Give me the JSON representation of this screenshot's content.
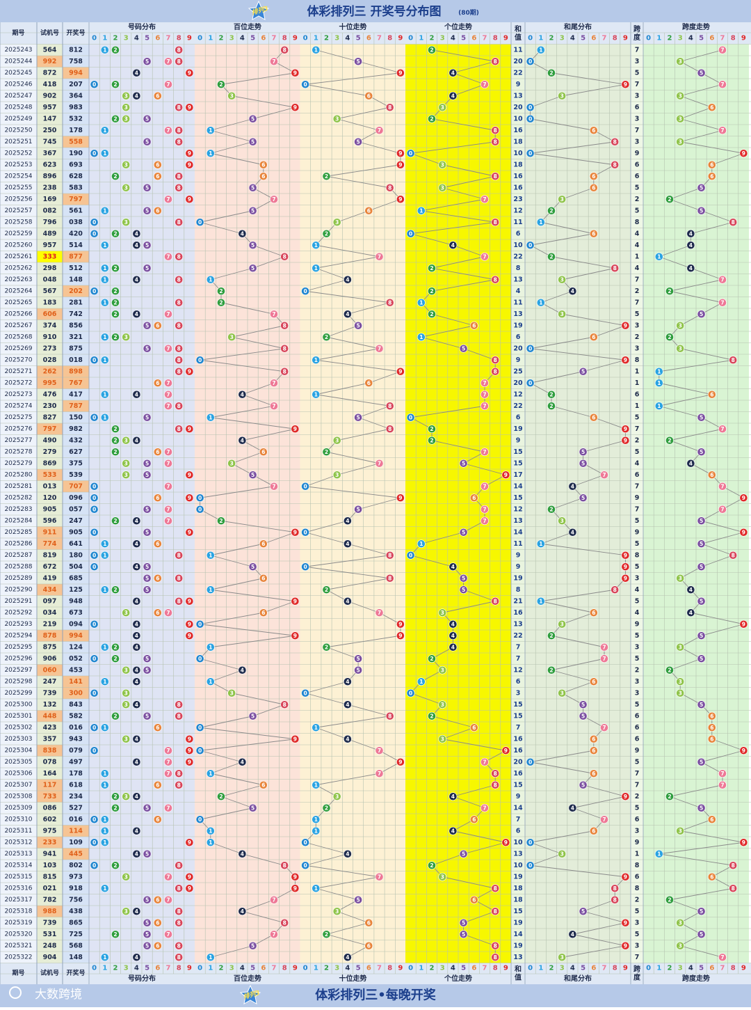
{
  "header": {
    "logo": "排列3",
    "title": "体彩排列三 开奖号分布图",
    "subtitle": "(80期)"
  },
  "columns": {
    "issue": "期号",
    "trial": "试机号",
    "draw": "开奖号",
    "distribution": "号码分布",
    "hundreds": "百位走势",
    "tens": "十位走势",
    "units": "个位走势",
    "sum": "和值",
    "sum_tail": "和尾分布",
    "span": "跨度",
    "span_trend": "跨度走势",
    "digits": [
      0,
      1,
      2,
      3,
      4,
      5,
      6,
      7,
      8,
      9
    ],
    "digit_colors": [
      "#1f86d0",
      "#2aa3e2",
      "#2f9e3e",
      "#8fc44a",
      "#1e2b4c",
      "#7a4ea0",
      "#e8843a",
      "#ee7896",
      "#d8455a",
      "#e02828"
    ]
  },
  "rows": [
    {
      "issue": "2025243",
      "trial": "564",
      "draw": "812",
      "sum": 11,
      "span": 7
    },
    {
      "issue": "2025244",
      "trial": "992",
      "draw": "758",
      "sum": 20,
      "span": 3
    },
    {
      "issue": "2025245",
      "trial": "872",
      "draw": "994",
      "sum": 22,
      "span": 5
    },
    {
      "issue": "2025246",
      "trial": "418",
      "draw": "207",
      "sum": 9,
      "span": 7
    },
    {
      "issue": "2025247",
      "trial": "902",
      "draw": "364",
      "sum": 13,
      "span": 3
    },
    {
      "issue": "2025248",
      "trial": "957",
      "draw": "983",
      "sum": 20,
      "span": 6
    },
    {
      "issue": "2025249",
      "trial": "147",
      "draw": "532",
      "sum": 10,
      "span": 3
    },
    {
      "issue": "2025250",
      "trial": "250",
      "draw": "178",
      "sum": 16,
      "span": 7
    },
    {
      "issue": "2025251",
      "trial": "745",
      "draw": "558",
      "sum": 18,
      "span": 3
    },
    {
      "issue": "2025252",
      "trial": "367",
      "draw": "190",
      "sum": 10,
      "span": 9
    },
    {
      "issue": "2025253",
      "trial": "623",
      "draw": "693",
      "sum": 18,
      "span": 6
    },
    {
      "issue": "2025254",
      "trial": "896",
      "draw": "628",
      "sum": 16,
      "span": 6
    },
    {
      "issue": "2025255",
      "trial": "238",
      "draw": "583",
      "sum": 16,
      "span": 5
    },
    {
      "issue": "2025256",
      "trial": "169",
      "draw": "797",
      "sum": 23,
      "span": 2
    },
    {
      "issue": "2025257",
      "trial": "082",
      "draw": "561",
      "sum": 12,
      "span": 5
    },
    {
      "issue": "2025258",
      "trial": "796",
      "draw": "038",
      "sum": 11,
      "span": 8
    },
    {
      "issue": "2025259",
      "trial": "489",
      "draw": "420",
      "sum": 6,
      "span": 4
    },
    {
      "issue": "2025260",
      "trial": "957",
      "draw": "514",
      "sum": 10,
      "span": 4
    },
    {
      "issue": "2025261",
      "trial": "333",
      "draw": "877",
      "sum": 22,
      "span": 1
    },
    {
      "issue": "2025262",
      "trial": "298",
      "draw": "512",
      "sum": 8,
      "span": 4
    },
    {
      "issue": "2025263",
      "trial": "048",
      "draw": "148",
      "sum": 13,
      "span": 7
    },
    {
      "issue": "2025264",
      "trial": "567",
      "draw": "202",
      "sum": 4,
      "span": 2
    },
    {
      "issue": "2025265",
      "trial": "183",
      "draw": "281",
      "sum": 11,
      "span": 7
    },
    {
      "issue": "2025266",
      "trial": "606",
      "draw": "742",
      "sum": 13,
      "span": 5
    },
    {
      "issue": "2025267",
      "trial": "374",
      "draw": "856",
      "sum": 19,
      "span": 3
    },
    {
      "issue": "2025268",
      "trial": "910",
      "draw": "321",
      "sum": 6,
      "span": 2
    },
    {
      "issue": "2025269",
      "trial": "273",
      "draw": "875",
      "sum": 20,
      "span": 3
    },
    {
      "issue": "2025270",
      "trial": "028",
      "draw": "018",
      "sum": 9,
      "span": 8
    },
    {
      "issue": "2025271",
      "trial": "262",
      "draw": "898",
      "sum": 25,
      "span": 1
    },
    {
      "issue": "2025272",
      "trial": "995",
      "draw": "767",
      "sum": 20,
      "span": 1
    },
    {
      "issue": "2025273",
      "trial": "476",
      "draw": "417",
      "sum": 12,
      "span": 6
    },
    {
      "issue": "2025274",
      "trial": "230",
      "draw": "787",
      "sum": 22,
      "span": 1
    },
    {
      "issue": "2025275",
      "trial": "827",
      "draw": "150",
      "sum": 6,
      "span": 5
    },
    {
      "issue": "2025276",
      "trial": "797",
      "draw": "982",
      "sum": 19,
      "span": 7
    },
    {
      "issue": "2025277",
      "trial": "490",
      "draw": "432",
      "sum": 9,
      "span": 2
    },
    {
      "issue": "2025278",
      "trial": "279",
      "draw": "627",
      "sum": 15,
      "span": 5
    },
    {
      "issue": "2025279",
      "trial": "869",
      "draw": "375",
      "sum": 15,
      "span": 4
    },
    {
      "issue": "2025280",
      "trial": "533",
      "draw": "539",
      "sum": 17,
      "span": 6
    },
    {
      "issue": "2025281",
      "trial": "013",
      "draw": "707",
      "sum": 14,
      "span": 7
    },
    {
      "issue": "2025282",
      "trial": "120",
      "draw": "096",
      "sum": 15,
      "span": 9
    },
    {
      "issue": "2025283",
      "trial": "905",
      "draw": "057",
      "sum": 12,
      "span": 7
    },
    {
      "issue": "2025284",
      "trial": "596",
      "draw": "247",
      "sum": 13,
      "span": 5
    },
    {
      "issue": "2025285",
      "trial": "911",
      "draw": "905",
      "sum": 14,
      "span": 9
    },
    {
      "issue": "2025286",
      "trial": "774",
      "draw": "641",
      "sum": 11,
      "span": 5
    },
    {
      "issue": "2025287",
      "trial": "819",
      "draw": "180",
      "sum": 9,
      "span": 8
    },
    {
      "issue": "2025288",
      "trial": "672",
      "draw": "504",
      "sum": 9,
      "span": 5
    },
    {
      "issue": "2025289",
      "trial": "419",
      "draw": "685",
      "sum": 19,
      "span": 3
    },
    {
      "issue": "2025290",
      "trial": "434",
      "draw": "125",
      "sum": 8,
      "span": 4
    },
    {
      "issue": "2025291",
      "trial": "097",
      "draw": "948",
      "sum": 21,
      "span": 5
    },
    {
      "issue": "2025292",
      "trial": "034",
      "draw": "673",
      "sum": 16,
      "span": 4
    },
    {
      "issue": "2025293",
      "trial": "219",
      "draw": "094",
      "sum": 13,
      "span": 9
    },
    {
      "issue": "2025294",
      "trial": "878",
      "draw": "994",
      "sum": 22,
      "span": 5
    },
    {
      "issue": "2025295",
      "trial": "875",
      "draw": "124",
      "sum": 7,
      "span": 3
    },
    {
      "issue": "2025296",
      "trial": "906",
      "draw": "052",
      "sum": 7,
      "span": 5
    },
    {
      "issue": "2025297",
      "trial": "060",
      "draw": "453",
      "sum": 12,
      "span": 2
    },
    {
      "issue": "2025298",
      "trial": "247",
      "draw": "141",
      "sum": 6,
      "span": 3
    },
    {
      "issue": "2025299",
      "trial": "739",
      "draw": "300",
      "sum": 3,
      "span": 3
    },
    {
      "issue": "2025300",
      "trial": "132",
      "draw": "843",
      "sum": 15,
      "span": 5
    },
    {
      "issue": "2025301",
      "trial": "448",
      "draw": "582",
      "sum": 15,
      "span": 6
    },
    {
      "issue": "2025302",
      "trial": "423",
      "draw": "016",
      "sum": 7,
      "span": 6
    },
    {
      "issue": "2025303",
      "trial": "357",
      "draw": "943",
      "sum": 16,
      "span": 6
    },
    {
      "issue": "2025304",
      "trial": "838",
      "draw": "079",
      "sum": 16,
      "span": 9
    },
    {
      "issue": "2025305",
      "trial": "078",
      "draw": "497",
      "sum": 20,
      "span": 5
    },
    {
      "issue": "2025306",
      "trial": "164",
      "draw": "178",
      "sum": 16,
      "span": 7
    },
    {
      "issue": "2025307",
      "trial": "117",
      "draw": "618",
      "sum": 15,
      "span": 7
    },
    {
      "issue": "2025308",
      "trial": "733",
      "draw": "234",
      "sum": 9,
      "span": 2
    },
    {
      "issue": "2025309",
      "trial": "086",
      "draw": "527",
      "sum": 14,
      "span": 5
    },
    {
      "issue": "2025310",
      "trial": "602",
      "draw": "016",
      "sum": 7,
      "span": 6
    },
    {
      "issue": "2025311",
      "trial": "975",
      "draw": "114",
      "sum": 6,
      "span": 3
    },
    {
      "issue": "2025312",
      "trial": "233",
      "draw": "109",
      "sum": 10,
      "span": 9
    },
    {
      "issue": "2025313",
      "trial": "941",
      "draw": "445",
      "sum": 13,
      "span": 1
    },
    {
      "issue": "2025314",
      "trial": "103",
      "draw": "802",
      "sum": 10,
      "span": 8
    },
    {
      "issue": "2025315",
      "trial": "815",
      "draw": "973",
      "sum": 19,
      "span": 6
    },
    {
      "issue": "2025316",
      "trial": "021",
      "draw": "918",
      "sum": 18,
      "span": 8
    },
    {
      "issue": "2025317",
      "trial": "782",
      "draw": "756",
      "sum": 18,
      "span": 2
    },
    {
      "issue": "2025318",
      "trial": "988",
      "draw": "438",
      "sum": 15,
      "span": 5
    },
    {
      "issue": "2025319",
      "trial": "739",
      "draw": "865",
      "sum": 19,
      "span": 3
    },
    {
      "issue": "2025320",
      "trial": "531",
      "draw": "725",
      "sum": 14,
      "span": 5
    },
    {
      "issue": "2025321",
      "trial": "248",
      "draw": "568",
      "sum": 19,
      "span": 3
    },
    {
      "issue": "2025322",
      "trial": "904",
      "draw": "148",
      "sum": 13,
      "span": 7
    }
  ],
  "footer": {
    "brand": "大数跨境",
    "slogan": "体彩排列三•每晚开奖"
  }
}
